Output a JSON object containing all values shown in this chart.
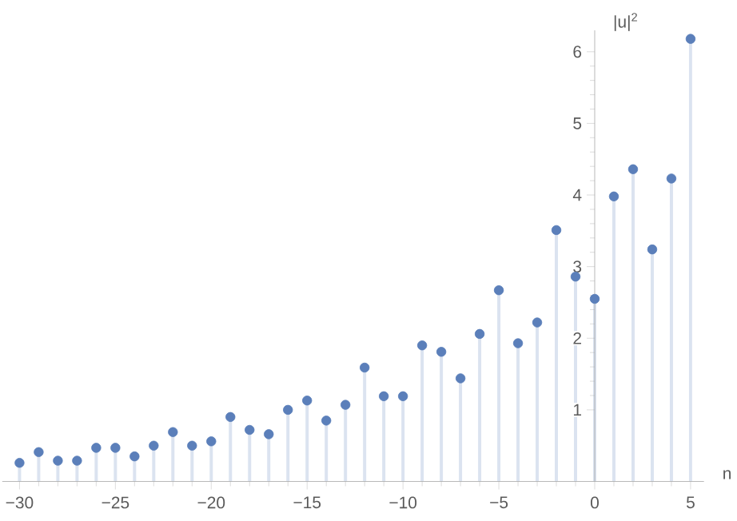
{
  "chart_data": {
    "type": "lollipop",
    "xlabel": "n",
    "ylabel": "|u|$^{2}$",
    "x": [
      -30,
      -29,
      -28,
      -27,
      -26,
      -25,
      -24,
      -23,
      -22,
      -21,
      -20,
      -19,
      -18,
      -17,
      -16,
      -15,
      -14,
      -13,
      -12,
      -11,
      -10,
      -9,
      -8,
      -7,
      -6,
      -5,
      -4,
      -3,
      -2,
      -1,
      0,
      1,
      2,
      3,
      4,
      5
    ],
    "values": [
      0.26,
      0.41,
      0.29,
      0.29,
      0.47,
      0.47,
      0.35,
      0.5,
      0.69,
      0.5,
      0.56,
      0.9,
      0.72,
      0.66,
      1.0,
      1.13,
      0.85,
      1.07,
      1.59,
      1.19,
      1.19,
      1.9,
      1.81,
      1.44,
      2.06,
      2.67,
      1.93,
      2.22,
      3.51,
      2.86,
      2.55,
      3.98,
      4.36,
      3.24,
      4.23,
      6.18
    ],
    "color": "#5b7fba",
    "marker": "circle",
    "xlim": [
      -30.9,
      5.7
    ],
    "ylim": [
      0,
      6.3
    ],
    "xticks": [
      {
        "value": -30,
        "label": "−30"
      },
      {
        "value": -25,
        "label": "−25"
      },
      {
        "value": -20,
        "label": "−20"
      },
      {
        "value": -15,
        "label": "−15"
      },
      {
        "value": -10,
        "label": "−10"
      },
      {
        "value": -5,
        "label": "−5"
      },
      0,
      5
    ],
    "yticks": [
      1,
      2,
      3,
      4,
      5,
      6
    ]
  }
}
